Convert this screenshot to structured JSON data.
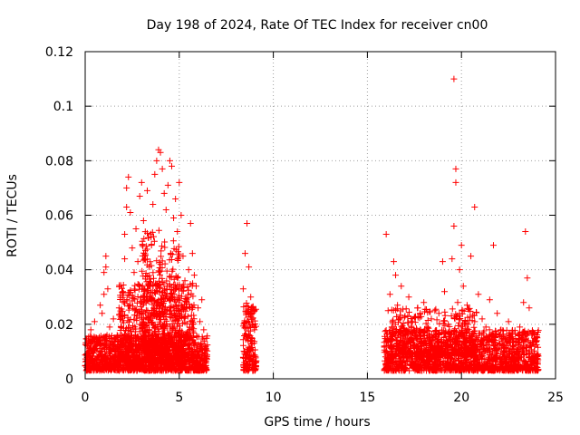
{
  "chart_data": {
    "type": "scatter",
    "title": "Day 198 of 2024, Rate Of TEC Index for receiver cn00",
    "xlabel": "GPS time / hours",
    "ylabel": "ROTI / TECUs",
    "xlim": [
      0,
      25
    ],
    "ylim": [
      0,
      0.12
    ],
    "x_ticks": [
      0,
      5,
      10,
      15,
      20,
      25
    ],
    "x_tick_labels": [
      "0",
      "5",
      "10",
      "15",
      "20",
      "25"
    ],
    "y_ticks": [
      0,
      0.02,
      0.04,
      0.06,
      0.08,
      0.1,
      0.12
    ],
    "y_tick_labels": [
      "0",
      "0.02",
      "0.04",
      "0.06",
      "0.08",
      "0.1",
      "0.12"
    ],
    "grid": true,
    "marker": "+",
    "color": "#ff0000",
    "series": [
      {
        "name": "ROTI",
        "points": [
          [
            0.1,
            0.009
          ],
          [
            0.2,
            0.013
          ],
          [
            0.3,
            0.018
          ],
          [
            0.4,
            0.011
          ],
          [
            0.5,
            0.021
          ],
          [
            0.6,
            0.015
          ],
          [
            0.7,
            0.008
          ],
          [
            0.8,
            0.027
          ],
          [
            0.9,
            0.024
          ],
          [
            1.0,
            0.031
          ],
          [
            1.0,
            0.039
          ],
          [
            1.1,
            0.041
          ],
          [
            1.1,
            0.045
          ],
          [
            1.2,
            0.033
          ],
          [
            1.3,
            0.019
          ],
          [
            1.4,
            0.012
          ],
          [
            1.5,
            0.022
          ],
          [
            1.6,
            0.009
          ],
          [
            1.7,
            0.016
          ],
          [
            1.8,
            0.026
          ],
          [
            1.9,
            0.019
          ],
          [
            2.0,
            0.032
          ],
          [
            2.1,
            0.044
          ],
          [
            2.1,
            0.053
          ],
          [
            2.2,
            0.063
          ],
          [
            2.2,
            0.07
          ],
          [
            2.3,
            0.074
          ],
          [
            2.4,
            0.061
          ],
          [
            2.5,
            0.048
          ],
          [
            2.6,
            0.039
          ],
          [
            2.7,
            0.055
          ],
          [
            2.8,
            0.043
          ],
          [
            2.9,
            0.067
          ],
          [
            3.0,
            0.072
          ],
          [
            3.1,
            0.058
          ],
          [
            3.2,
            0.047
          ],
          [
            3.3,
            0.069
          ],
          [
            3.4,
            0.041
          ],
          [
            3.5,
            0.052
          ],
          [
            3.6,
            0.064
          ],
          [
            3.7,
            0.075
          ],
          [
            3.8,
            0.08
          ],
          [
            3.9,
            0.084
          ],
          [
            4.0,
            0.083
          ],
          [
            4.1,
            0.077
          ],
          [
            4.2,
            0.068
          ],
          [
            4.3,
            0.062
          ],
          [
            4.4,
            0.071
          ],
          [
            4.5,
            0.08
          ],
          [
            4.6,
            0.078
          ],
          [
            4.7,
            0.059
          ],
          [
            4.8,
            0.066
          ],
          [
            4.9,
            0.054
          ],
          [
            5.0,
            0.072
          ],
          [
            5.1,
            0.06
          ],
          [
            5.2,
            0.045
          ],
          [
            5.3,
            0.036
          ],
          [
            5.4,
            0.028
          ],
          [
            5.5,
            0.04
          ],
          [
            5.6,
            0.057
          ],
          [
            5.7,
            0.046
          ],
          [
            5.8,
            0.038
          ],
          [
            5.9,
            0.034
          ],
          [
            6.0,
            0.026
          ],
          [
            6.1,
            0.021
          ],
          [
            6.2,
            0.029
          ],
          [
            6.3,
            0.018
          ],
          [
            6.4,
            0.012
          ],
          [
            8.4,
            0.033
          ],
          [
            8.5,
            0.046
          ],
          [
            8.6,
            0.057
          ],
          [
            8.7,
            0.041
          ],
          [
            8.8,
            0.03
          ],
          [
            8.9,
            0.024
          ],
          [
            9.0,
            0.018
          ],
          [
            15.9,
            0.012
          ],
          [
            16.0,
            0.053
          ],
          [
            16.1,
            0.025
          ],
          [
            16.2,
            0.031
          ],
          [
            16.3,
            0.019
          ],
          [
            16.4,
            0.043
          ],
          [
            16.5,
            0.038
          ],
          [
            16.6,
            0.027
          ],
          [
            16.8,
            0.034
          ],
          [
            17.0,
            0.023
          ],
          [
            17.2,
            0.03
          ],
          [
            17.4,
            0.021
          ],
          [
            17.6,
            0.017
          ],
          [
            17.8,
            0.024
          ],
          [
            18.0,
            0.028
          ],
          [
            18.2,
            0.019
          ],
          [
            18.4,
            0.022
          ],
          [
            18.6,
            0.015
          ],
          [
            18.8,
            0.024
          ],
          [
            19.0,
            0.043
          ],
          [
            19.1,
            0.032
          ],
          [
            19.3,
            0.02
          ],
          [
            19.5,
            0.044
          ],
          [
            19.6,
            0.056
          ],
          [
            19.6,
            0.11
          ],
          [
            19.7,
            0.077
          ],
          [
            19.7,
            0.072
          ],
          [
            19.8,
            0.028
          ],
          [
            19.9,
            0.04
          ],
          [
            20.0,
            0.049
          ],
          [
            20.1,
            0.034
          ],
          [
            20.3,
            0.027
          ],
          [
            20.5,
            0.045
          ],
          [
            20.7,
            0.063
          ],
          [
            20.9,
            0.031
          ],
          [
            21.1,
            0.022
          ],
          [
            21.3,
            0.019
          ],
          [
            21.5,
            0.029
          ],
          [
            21.7,
            0.049
          ],
          [
            21.9,
            0.024
          ],
          [
            22.1,
            0.018
          ],
          [
            22.3,
            0.015
          ],
          [
            22.5,
            0.021
          ],
          [
            22.7,
            0.017
          ],
          [
            22.9,
            0.014
          ],
          [
            23.1,
            0.019
          ],
          [
            23.3,
            0.028
          ],
          [
            23.4,
            0.054
          ],
          [
            23.5,
            0.037
          ],
          [
            23.6,
            0.026
          ],
          [
            23.8,
            0.017
          ],
          [
            24.0,
            0.014
          ]
        ],
        "bands": [
          {
            "x": [
              0.0,
              6.5
            ],
            "y": [
              0.003,
              0.016
            ],
            "n": 1400
          },
          {
            "x": [
              1.8,
              5.8
            ],
            "y": [
              0.006,
              0.035
            ],
            "n": 700
          },
          {
            "x": [
              3.0,
              5.0
            ],
            "y": [
              0.01,
              0.055
            ],
            "n": 300
          },
          {
            "x": [
              8.4,
              9.1
            ],
            "y": [
              0.003,
              0.028
            ],
            "n": 180
          },
          {
            "x": [
              15.9,
              24.1
            ],
            "y": [
              0.003,
              0.018
            ],
            "n": 1600
          },
          {
            "x": [
              16.2,
              20.8
            ],
            "y": [
              0.008,
              0.026
            ],
            "n": 350
          }
        ]
      }
    ]
  }
}
